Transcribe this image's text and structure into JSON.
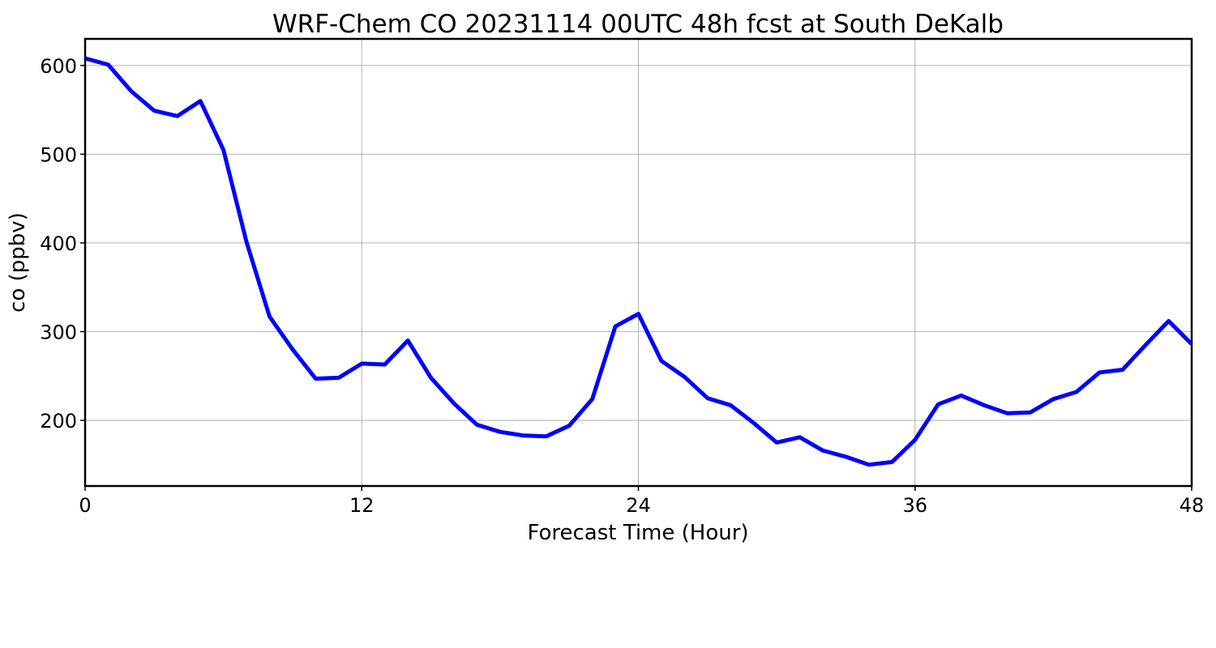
{
  "chart_data": {
    "type": "line",
    "title": "WRF-Chem CO  20231114 00UTC 48h fcst at South DeKalb",
    "xlabel": "Forecast Time (Hour)",
    "ylabel": "co  (ppbv)",
    "xlim": [
      0,
      48
    ],
    "ylim": [
      126,
      630
    ],
    "xticks": [
      0,
      12,
      24,
      36,
      48
    ],
    "yticks": [
      200,
      300,
      400,
      500,
      600
    ],
    "grid": true,
    "line_color": "#0000ff",
    "x": [
      0,
      1,
      2,
      3,
      4,
      5,
      6,
      7,
      8,
      9,
      10,
      11,
      12,
      13,
      14,
      15,
      16,
      17,
      18,
      19,
      20,
      21,
      22,
      23,
      24,
      25,
      26,
      27,
      28,
      29,
      30,
      31,
      32,
      33,
      34,
      35,
      36,
      37,
      38,
      39,
      40,
      41,
      42,
      43,
      44,
      45,
      46,
      47,
      48
    ],
    "series": [
      {
        "values": [
          608,
          601,
          571,
          549,
          543,
          560,
          505,
          401,
          317,
          280,
          247,
          248,
          264,
          263,
          290,
          248,
          219,
          195,
          187,
          183,
          182,
          194,
          224,
          306,
          320,
          267,
          249,
          225,
          217,
          197,
          175,
          181,
          166,
          159,
          150,
          153,
          178,
          218,
          228,
          217,
          208,
          209,
          224,
          232,
          254,
          257,
          285,
          312,
          286
        ]
      }
    ]
  }
}
